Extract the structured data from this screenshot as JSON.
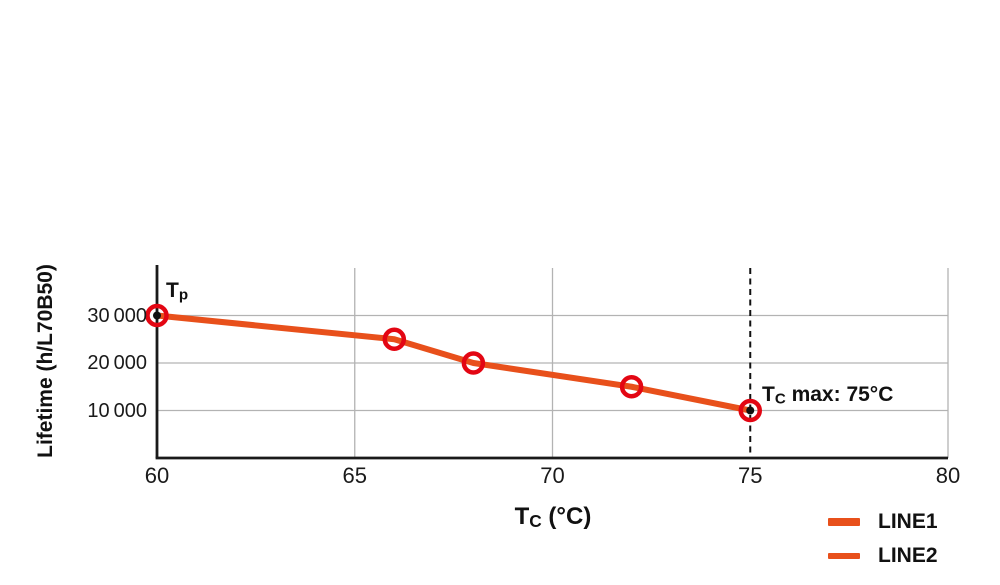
{
  "chart_data": {
    "type": "line",
    "title": "",
    "xlabel": {
      "main": "T",
      "sub": "C",
      "rest": " (°C)"
    },
    "ylabel": "Lifetime (h/L70B50)",
    "xlim": [
      60,
      80
    ],
    "ylim": [
      0,
      40000
    ],
    "grid": true,
    "legend_position": "bottom-right",
    "x_ticks": [
      {
        "value": 60,
        "label": "60"
      },
      {
        "value": 65,
        "label": "65"
      },
      {
        "value": 70,
        "label": "70"
      },
      {
        "value": 75,
        "label": "75"
      },
      {
        "value": 80,
        "label": "80"
      }
    ],
    "y_ticks": [
      {
        "value": 10000,
        "label": "10 000"
      },
      {
        "value": 20000,
        "label": "20 000"
      },
      {
        "value": 30000,
        "label": "30 000"
      }
    ],
    "dashed_vline_x": 75,
    "series": [
      {
        "name": "LINE1",
        "color": "#E8501B",
        "width": 6,
        "points": [
          {
            "x": 60,
            "y": 30000,
            "dot": true
          },
          {
            "x": 66,
            "y": 25000,
            "dot": false
          },
          {
            "x": 68,
            "y": 20000,
            "dot": false
          },
          {
            "x": 72,
            "y": 15000,
            "dot": false
          },
          {
            "x": 75,
            "y": 10000,
            "dot": true
          }
        ]
      }
    ],
    "marker": {
      "shape": "open-circle",
      "color": "#E30613",
      "radius": 9.5,
      "stroke_width": 4.5
    },
    "annotations": [
      {
        "main": "T",
        "sub": "p",
        "rest": "",
        "anchor": {
          "x": 60,
          "y": 30000
        }
      },
      {
        "main": "T",
        "sub": "C",
        "rest": " max: 75°C",
        "anchor": {
          "x": 75,
          "y": 10000
        }
      }
    ]
  },
  "legend": {
    "swatch_color": "#E8501B",
    "items": [
      {
        "label": "LINE1",
        "swatch_thickness": 8
      },
      {
        "label": "LINE2",
        "swatch_thickness": 6
      }
    ]
  },
  "colors": {
    "line_orange": "#E8501B",
    "marker_red": "#E30613",
    "grid": "#B3B3B3",
    "axis": "#1A1A1A",
    "dashed_line": "#111111",
    "text": "#111111"
  }
}
